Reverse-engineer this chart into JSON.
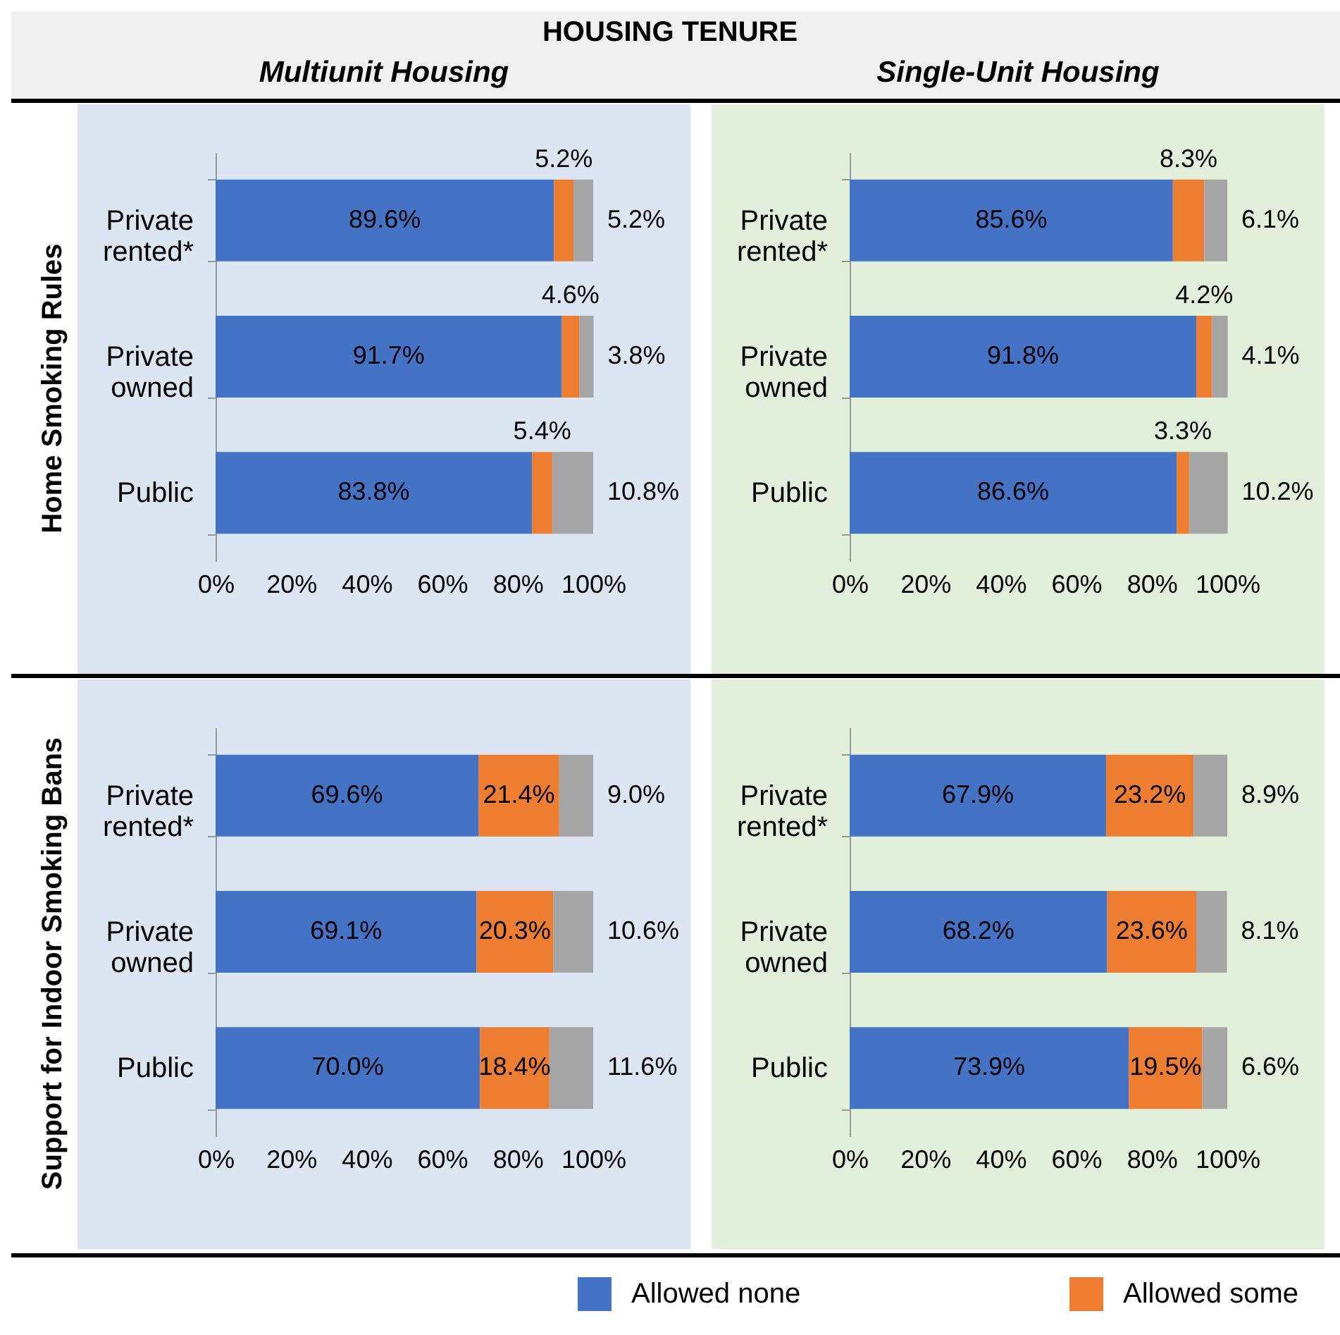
{
  "chart_data": [
    {
      "type": "bar",
      "orientation": "horizontal",
      "stacked": true,
      "title": "Multiunit Housing",
      "ylabel": "Home Smoking Rules",
      "annotations": [
        "HOUSING TENURE"
      ],
      "categories": [
        "Private rented*",
        "Private owned",
        "Public"
      ],
      "xlim": [
        0,
        100
      ],
      "xticks": [
        {
          "value": 0,
          "label": "0%"
        },
        {
          "value": 20,
          "label": "20%"
        },
        {
          "value": 40,
          "label": "40%"
        },
        {
          "value": 60,
          "label": "60%"
        },
        {
          "value": 80,
          "label": "80%"
        },
        {
          "value": 100,
          "label": "100%"
        }
      ],
      "grid": false,
      "series": [
        {
          "color": "#4472c4",
          "values": [
            89.6,
            91.7,
            83.8
          ],
          "value_labels": [
            "89.6%",
            "91.7%",
            "83.8%"
          ]
        },
        {
          "color": "#ed7d31",
          "values": [
            5.2,
            4.6,
            5.4
          ],
          "value_labels": [
            "5.2%",
            "4.6%",
            "5.4%"
          ]
        },
        {
          "color": "#a5a5a5",
          "values": [
            5.2,
            3.8,
            10.8
          ],
          "value_labels": [
            "5.2%",
            "3.8%",
            "10.8%"
          ]
        }
      ]
    },
    {
      "type": "bar",
      "orientation": "horizontal",
      "stacked": true,
      "title": "Single-Unit Housing",
      "categories": [
        "Private rented*",
        "Private owned",
        "Public"
      ],
      "xlim": [
        0,
        100
      ],
      "xticks": [
        {
          "value": 0,
          "label": "0%"
        },
        {
          "value": 20,
          "label": "20%"
        },
        {
          "value": 40,
          "label": "40%"
        },
        {
          "value": 60,
          "label": "60%"
        },
        {
          "value": 80,
          "label": "80%"
        },
        {
          "value": 100,
          "label": "100%"
        }
      ],
      "grid": false,
      "series": [
        {
          "color": "#4472c4",
          "values": [
            85.6,
            91.8,
            86.6
          ],
          "value_labels": [
            "85.6%",
            "91.8%",
            "86.6%"
          ]
        },
        {
          "color": "#ed7d31",
          "values": [
            8.3,
            4.2,
            3.3
          ],
          "value_labels": [
            "8.3%",
            "4.2%",
            "3.3%"
          ]
        },
        {
          "color": "#a5a5a5",
          "values": [
            6.1,
            4.1,
            10.2
          ],
          "value_labels": [
            "6.1%",
            "4.1%",
            "10.2%"
          ]
        }
      ]
    },
    {
      "type": "bar",
      "orientation": "horizontal",
      "stacked": true,
      "ylabel": "Support for Indoor Smoking Bans",
      "categories": [
        "Private rented*",
        "Private owned",
        "Public"
      ],
      "xlim": [
        0,
        100
      ],
      "xticks": [
        {
          "value": 0,
          "label": "0%"
        },
        {
          "value": 20,
          "label": "20%"
        },
        {
          "value": 40,
          "label": "40%"
        },
        {
          "value": 60,
          "label": "60%"
        },
        {
          "value": 80,
          "label": "80%"
        },
        {
          "value": 100,
          "label": "100%"
        }
      ],
      "grid": false,
      "series": [
        {
          "color": "#4472c4",
          "values": [
            69.6,
            69.1,
            70.0
          ],
          "value_labels": [
            "69.6%",
            "69.1%",
            "70.0%"
          ]
        },
        {
          "color": "#ed7d31",
          "values": [
            21.4,
            20.3,
            18.4
          ],
          "value_labels": [
            "21.4%",
            "20.3%",
            "18.4%"
          ]
        },
        {
          "color": "#a5a5a5",
          "values": [
            9.0,
            10.6,
            11.6
          ],
          "value_labels": [
            "9.0%",
            "10.6%",
            "11.6%"
          ]
        }
      ]
    },
    {
      "type": "bar",
      "orientation": "horizontal",
      "stacked": true,
      "legend": "bottom",
      "categories": [
        "Private rented*",
        "Private owned",
        "Public"
      ],
      "xlim": [
        0,
        100
      ],
      "xticks": [
        {
          "value": 0,
          "label": "0%"
        },
        {
          "value": 20,
          "label": "20%"
        },
        {
          "value": 40,
          "label": "40%"
        },
        {
          "value": 60,
          "label": "60%"
        },
        {
          "value": 80,
          "label": "80%"
        },
        {
          "value": 100,
          "label": "100%"
        }
      ],
      "grid": false,
      "series": [
        {
          "name": "Allowed none",
          "color": "#4472c4",
          "values": [
            67.9,
            68.2,
            73.9
          ],
          "value_labels": [
            "67.9%",
            "68.2%",
            "73.9%"
          ]
        },
        {
          "name": "Allowed some",
          "color": "#ed7d31",
          "values": [
            23.2,
            23.6,
            19.5
          ],
          "value_labels": [
            "23.2%",
            "23.6%",
            "19.5%"
          ]
        },
        {
          "color": "#a5a5a5",
          "values": [
            8.9,
            8.1,
            6.6
          ],
          "value_labels": [
            "8.9%",
            "8.1%",
            "6.6%"
          ]
        }
      ]
    }
  ]
}
